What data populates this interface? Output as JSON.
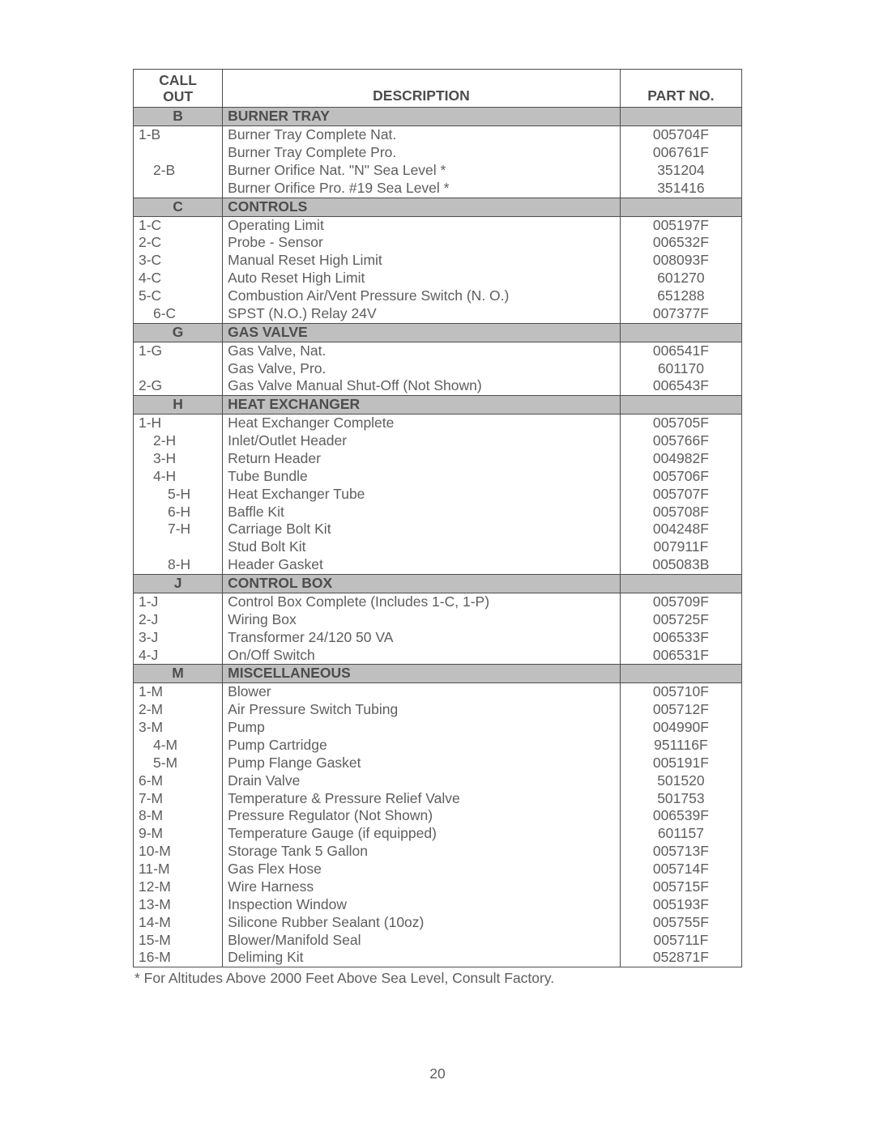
{
  "page_number": "20",
  "footnote": "* For Altitudes Above 2000 Feet Above Sea Level, Consult Factory.",
  "headers": {
    "callout_l1": "CALL",
    "callout_l2": "OUT",
    "description": "DESCRIPTION",
    "partno": "PART NO."
  },
  "colors": {
    "text": "#5e5e5e",
    "border": "#4d4d4d",
    "section_bg": "#bfbfbf",
    "page_bg": "#ffffff"
  },
  "sections": [
    {
      "code": "B",
      "title": "BURNER TRAY",
      "rows": [
        {
          "callout": "1-B",
          "indent": 0,
          "desc": "Burner Tray Complete Nat.",
          "part": "005704F"
        },
        {
          "callout": "",
          "indent": 0,
          "desc": "Burner Tray Complete Pro.",
          "part": "006761F"
        },
        {
          "callout": "2-B",
          "indent": 1,
          "desc": "Burner Orifice Nat. \"N\" Sea Level *",
          "part": "351204"
        },
        {
          "callout": "",
          "indent": 1,
          "desc": "Burner Orifice Pro. #19 Sea Level *",
          "part": "351416"
        }
      ]
    },
    {
      "code": "C",
      "title": "CONTROLS",
      "rows": [
        {
          "callout": "1-C",
          "indent": 0,
          "desc": "Operating Limit",
          "part": "005197F"
        },
        {
          "callout": "2-C",
          "indent": 0,
          "desc": "Probe - Sensor",
          "part": "006532F"
        },
        {
          "callout": "3-C",
          "indent": 0,
          "desc": "Manual Reset High Limit",
          "part": "008093F"
        },
        {
          "callout": "4-C",
          "indent": 0,
          "desc": "Auto Reset High Limit",
          "part": "601270"
        },
        {
          "callout": "5-C",
          "indent": 0,
          "desc": "Combustion Air/Vent Pressure Switch (N. O.)",
          "part": "651288"
        },
        {
          "callout": "6-C",
          "indent": 1,
          "desc": "SPST (N.O.) Relay 24V",
          "part": "007377F"
        }
      ]
    },
    {
      "code": "G",
      "title": "GAS VALVE",
      "rows": [
        {
          "callout": "1-G",
          "indent": 0,
          "desc": "Gas Valve, Nat.",
          "part": "006541F"
        },
        {
          "callout": "",
          "indent": 0,
          "desc": "Gas Valve, Pro.",
          "part": "601170"
        },
        {
          "callout": "2-G",
          "indent": 0,
          "desc": "Gas Valve Manual Shut-Off (Not Shown)",
          "part": "006543F"
        }
      ]
    },
    {
      "code": "H",
      "title": "HEAT EXCHANGER",
      "rows": [
        {
          "callout": "1-H",
          "indent": 0,
          "desc": "Heat Exchanger Complete",
          "part": "005705F"
        },
        {
          "callout": "2-H",
          "indent": 1,
          "desc": "Inlet/Outlet Header",
          "part": "005766F"
        },
        {
          "callout": "3-H",
          "indent": 1,
          "desc": "Return Header",
          "part": "004982F"
        },
        {
          "callout": "4-H",
          "indent": 1,
          "desc": "Tube Bundle",
          "part": "005706F"
        },
        {
          "callout": "5-H",
          "indent": 2,
          "desc": "Heat Exchanger Tube",
          "part": "005707F"
        },
        {
          "callout": "6-H",
          "indent": 2,
          "desc": "Baffle Kit",
          "part": "005708F"
        },
        {
          "callout": "7-H",
          "indent": 2,
          "desc": "Carriage Bolt Kit",
          "part": "004248F"
        },
        {
          "callout": "",
          "indent": 2,
          "desc": "Stud Bolt Kit",
          "part": "007911F"
        },
        {
          "callout": "8-H",
          "indent": 2,
          "desc": "Header Gasket",
          "part": "005083B"
        }
      ]
    },
    {
      "code": "J",
      "title": "CONTROL BOX",
      "rows": [
        {
          "callout": "1-J",
          "indent": 0,
          "desc": "Control Box Complete (Includes 1-C, 1-P)",
          "part": "005709F"
        },
        {
          "callout": "2-J",
          "indent": 0,
          "desc": "Wiring Box",
          "part": "005725F"
        },
        {
          "callout": "3-J",
          "indent": 0,
          "desc": "Transformer 24/120 50 VA",
          "part": "006533F"
        },
        {
          "callout": "4-J",
          "indent": 0,
          "desc": "On/Off Switch",
          "part": "006531F"
        }
      ]
    },
    {
      "code": "M",
      "title": "MISCELLANEOUS",
      "rows": [
        {
          "callout": "1-M",
          "indent": 0,
          "desc": "Blower",
          "part": "005710F"
        },
        {
          "callout": "2-M",
          "indent": 0,
          "desc": "Air Pressure Switch Tubing",
          "part": "005712F"
        },
        {
          "callout": "3-M",
          "indent": 0,
          "desc": "Pump",
          "part": "004990F"
        },
        {
          "callout": "4-M",
          "indent": 1,
          "desc": "Pump Cartridge",
          "part": "951116F"
        },
        {
          "callout": "5-M",
          "indent": 1,
          "desc": "Pump Flange Gasket",
          "part": "005191F"
        },
        {
          "callout": "6-M",
          "indent": 0,
          "desc": "Drain Valve",
          "part": "501520"
        },
        {
          "callout": "7-M",
          "indent": 0,
          "desc": "Temperature & Pressure Relief Valve",
          "part": "501753"
        },
        {
          "callout": "8-M",
          "indent": 0,
          "desc": "Pressure Regulator (Not Shown)",
          "part": "006539F"
        },
        {
          "callout": "9-M",
          "indent": 0,
          "desc": "Temperature Gauge (if equipped)",
          "part": "601157"
        },
        {
          "callout": "10-M",
          "indent": 0,
          "desc": "Storage Tank 5 Gallon",
          "part": "005713F"
        },
        {
          "callout": "11-M",
          "indent": 0,
          "desc": "Gas Flex Hose",
          "part": "005714F"
        },
        {
          "callout": "12-M",
          "indent": 0,
          "desc": "Wire Harness",
          "part": "005715F"
        },
        {
          "callout": "13-M",
          "indent": 0,
          "desc": "Inspection Window",
          "part": "005193F"
        },
        {
          "callout": "14-M",
          "indent": 0,
          "desc": "Silicone Rubber Sealant (10oz)",
          "part": "005755F"
        },
        {
          "callout": "15-M",
          "indent": 0,
          "desc": "Blower/Manifold Seal",
          "part": "005711F"
        },
        {
          "callout": "16-M",
          "indent": 0,
          "desc": "Deliming Kit",
          "part": "052871F"
        }
      ]
    }
  ]
}
